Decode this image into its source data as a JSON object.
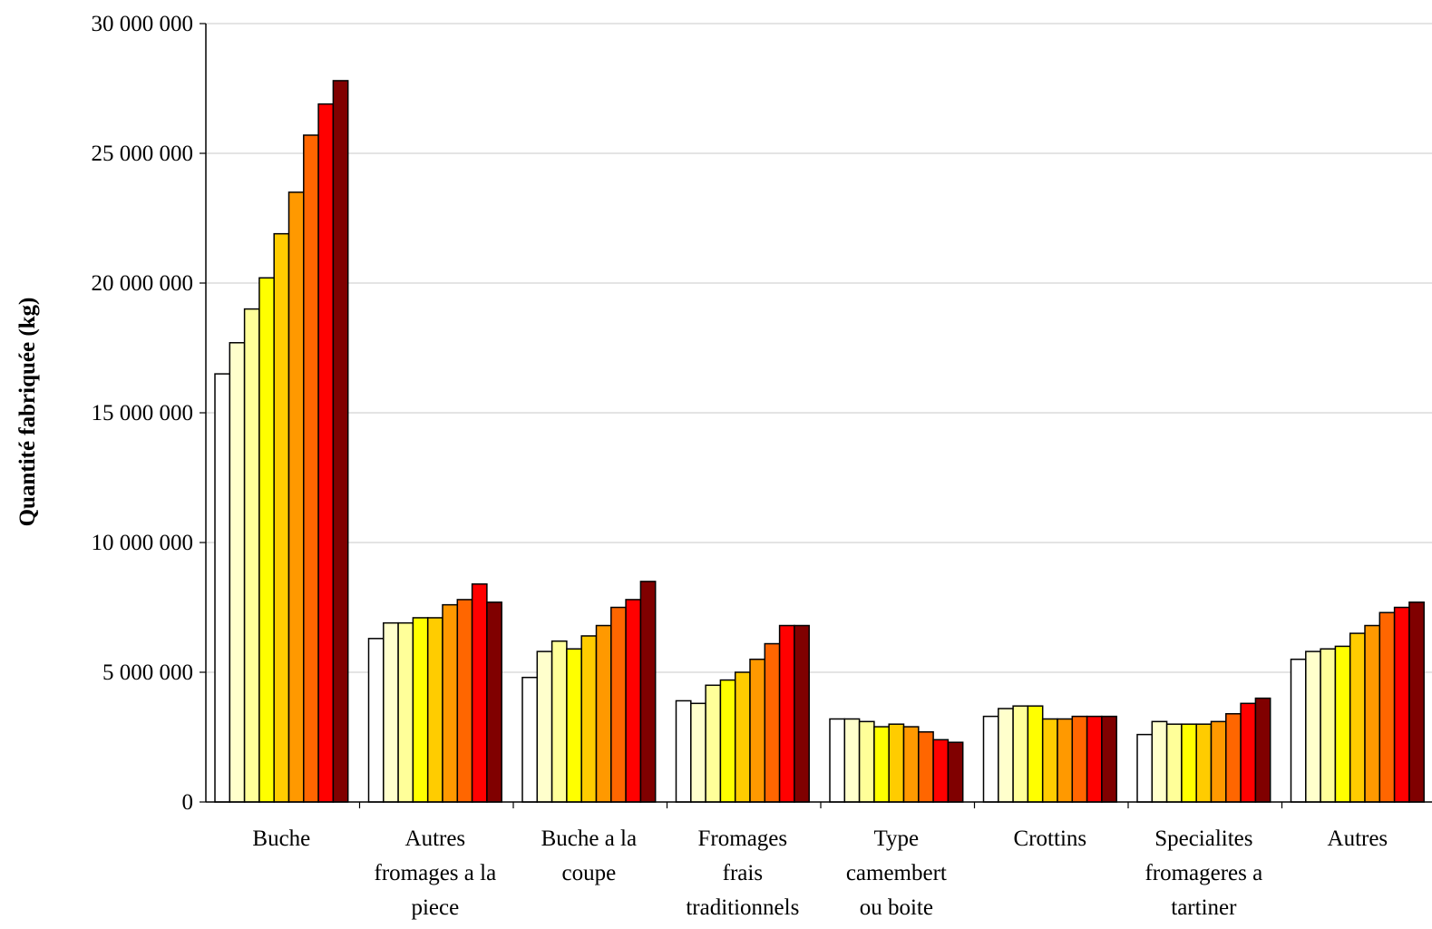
{
  "chart_data": {
    "type": "bar",
    "ylabel": "Quantité fabriquée (kg)",
    "xlabel": "",
    "ylim": [
      0,
      30000000
    ],
    "yticks": [
      0,
      5000000,
      10000000,
      15000000,
      20000000,
      25000000,
      30000000
    ],
    "ytick_labels": [
      "0",
      "5 000 000",
      "10 000 000",
      "15 000 000",
      "20 000 000",
      "25 000 000",
      "30 000 000"
    ],
    "grid": true,
    "legend": "none",
    "categories": [
      [
        "Buche"
      ],
      [
        "Autres",
        "fromages a la",
        "piece"
      ],
      [
        "Buche a la",
        "coupe"
      ],
      [
        "Fromages",
        "frais",
        "traditionnels"
      ],
      [
        "Type",
        "camembert",
        "ou boite"
      ],
      [
        "Crottins"
      ],
      [
        "Specialites",
        "fromageres a",
        "tartiner"
      ],
      [
        "Autres"
      ]
    ],
    "series_colors": [
      "#FFFFFF",
      "#FFFFCC",
      "#FFFF99",
      "#FFFF00",
      "#FFCC00",
      "#FF9900",
      "#FF6600",
      "#FF0000",
      "#800000"
    ],
    "values": [
      [
        16500000,
        17700000,
        19000000,
        20200000,
        21900000,
        23500000,
        25700000,
        26900000,
        27800000
      ],
      [
        6300000,
        6900000,
        6900000,
        7100000,
        7100000,
        7600000,
        7800000,
        8400000,
        7700000
      ],
      [
        4800000,
        5800000,
        6200000,
        5900000,
        6400000,
        6800000,
        7500000,
        7800000,
        8500000
      ],
      [
        3900000,
        3800000,
        4500000,
        4700000,
        5000000,
        5500000,
        6100000,
        6800000,
        6800000
      ],
      [
        3200000,
        3200000,
        3100000,
        2900000,
        3000000,
        2900000,
        2700000,
        2400000,
        2300000
      ],
      [
        3300000,
        3600000,
        3700000,
        3700000,
        3200000,
        3200000,
        3300000,
        3300000,
        3300000
      ],
      [
        2600000,
        3100000,
        3000000,
        3000000,
        3000000,
        3100000,
        3400000,
        3800000,
        4000000
      ],
      [
        5500000,
        5800000,
        5900000,
        6000000,
        6500000,
        6800000,
        7300000,
        7500000,
        7700000
      ]
    ]
  }
}
